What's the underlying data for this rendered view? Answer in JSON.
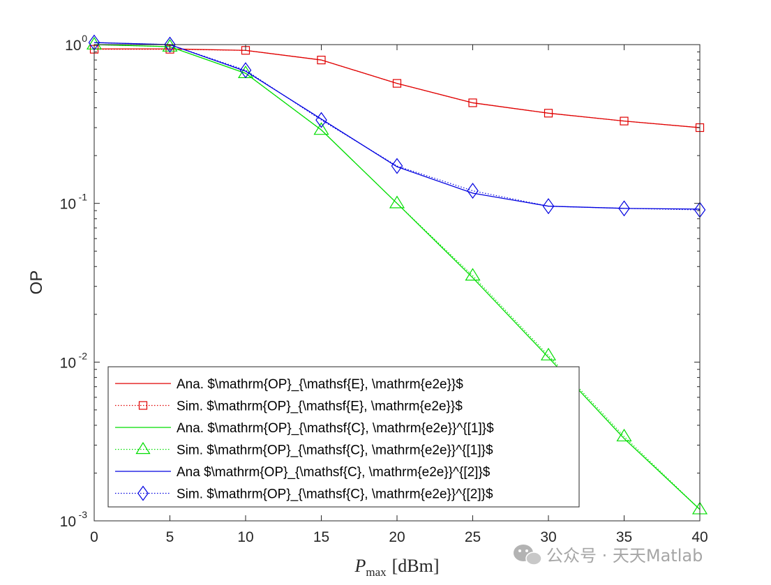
{
  "chart_data": {
    "type": "line",
    "xlabel": "P",
    "xlabel_sub": "max",
    "xlabel_unit": "[dBm]",
    "ylabel": "OP",
    "xlim": [
      0,
      40
    ],
    "ylim": [
      0.001,
      1
    ],
    "yscale": "log",
    "grid": false,
    "legend_position": "bottom-left",
    "x_ticks": [
      "0",
      "5",
      "10",
      "15",
      "20",
      "25",
      "30",
      "35",
      "40"
    ],
    "y_ticks": [
      {
        "value": 1,
        "base": "10",
        "exp": "0"
      },
      {
        "value": 0.1,
        "base": "10",
        "exp": "-1"
      },
      {
        "value": 0.01,
        "base": "10",
        "exp": "-2"
      },
      {
        "value": 0.001,
        "base": "10",
        "exp": "-3"
      }
    ],
    "colors": {
      "red": "#e00000",
      "green": "#00dd00",
      "blue": "#0000e0"
    },
    "series": [
      {
        "name": "Ana. $\\mathrm{OP}_{\\mathsf{E}, \\mathrm{e2e}}$",
        "style": "solid",
        "marker": "none",
        "color": "#e00000",
        "x": [
          0,
          5,
          10,
          15,
          20,
          25,
          30,
          35,
          40
        ],
        "values": [
          0.94,
          0.94,
          0.92,
          0.8,
          0.57,
          0.43,
          0.37,
          0.33,
          0.3
        ]
      },
      {
        "name": "Sim. $\\mathrm{OP}_{\\mathsf{E}, \\mathrm{e2e}}$",
        "style": "dotted",
        "marker": "square",
        "color": "#e00000",
        "x": [
          0,
          5,
          10,
          15,
          20,
          25,
          30,
          35,
          40
        ],
        "values": [
          0.935,
          0.935,
          0.92,
          0.8,
          0.57,
          0.43,
          0.37,
          0.33,
          0.3
        ]
      },
      {
        "name": "Ana. $\\mathrm{OP}_{\\mathsf{C}, \\mathrm{e2e}}^{[1]}$",
        "style": "solid",
        "marker": "none",
        "color": "#00dd00",
        "x": [
          0,
          5,
          10,
          15,
          20,
          25,
          30,
          35,
          40
        ],
        "values": [
          1.0,
          0.97,
          0.66,
          0.29,
          0.1,
          0.034,
          0.0107,
          0.0033,
          0.00118
        ]
      },
      {
        "name": "Sim. $\\mathrm{OP}_{\\mathsf{C}, \\mathrm{e2e}}^{[1]}$",
        "style": "dotted",
        "marker": "triangle",
        "color": "#00dd00",
        "x": [
          0,
          5,
          10,
          15,
          20,
          25,
          30,
          35,
          40
        ],
        "values": [
          1.0,
          0.97,
          0.66,
          0.29,
          0.1,
          0.035,
          0.011,
          0.0034,
          0.00118
        ]
      },
      {
        "name": "Ana $\\mathrm{OP}_{\\mathsf{C}, \\mathrm{e2e}}^{[2]}$",
        "style": "solid",
        "marker": "none",
        "color": "#0000e0",
        "x": [
          0,
          5,
          10,
          15,
          20,
          25,
          30,
          35,
          40
        ],
        "values": [
          1.03,
          1.0,
          0.68,
          0.34,
          0.17,
          0.116,
          0.096,
          0.093,
          0.092
        ]
      },
      {
        "name": "Sim. $\\mathrm{OP}_{\\mathsf{C}, \\mathrm{e2e}}^{[2]}$",
        "style": "dotted",
        "marker": "diamond",
        "color": "#0000e0",
        "x": [
          0,
          5,
          10,
          15,
          20,
          25,
          30,
          35,
          40
        ],
        "values": [
          1.03,
          1.0,
          0.69,
          0.335,
          0.172,
          0.12,
          0.096,
          0.093,
          0.091
        ]
      }
    ]
  },
  "watermark": {
    "text": "公众号 · 天天Matlab",
    "icon": "wechat-icon",
    "color": "#a6a6a6"
  }
}
